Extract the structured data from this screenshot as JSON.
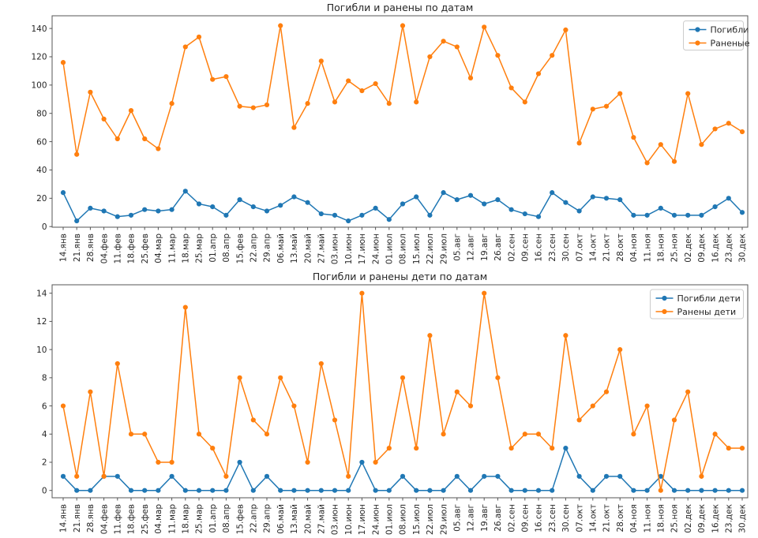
{
  "figure": {
    "background": "#ffffff",
    "spine_color": "#555555",
    "text_color": "#262626"
  },
  "chart_data": [
    {
      "type": "line",
      "title": "Погибли и ранены по датам",
      "ylabel": "",
      "xlabel": "",
      "ylim": [
        0,
        149
      ],
      "y_ticks": [
        0,
        20,
        40,
        60,
        80,
        100,
        120,
        140
      ],
      "grid": false,
      "legend_position": "upper right",
      "categories": [
        "14.янв",
        "21.янв",
        "28.янв",
        "04.фев",
        "11.фев",
        "18.фев",
        "25.фев",
        "04.мар",
        "11.мар",
        "18.мар",
        "25.мар",
        "01.апр",
        "08.апр",
        "15.фев",
        "22.апр",
        "29.апр",
        "06.май",
        "13.май",
        "20.май",
        "27.май",
        "03.июн",
        "10.июн",
        "17.июн",
        "24.июн",
        "01.июл",
        "08.июл",
        "15.июл",
        "22.июл",
        "29.июл",
        "05.авг",
        "12.авг",
        "19.авг",
        "26.авг",
        "02.сен",
        "09.сен",
        "16.сен",
        "23.сен",
        "30.сен",
        "07.окт",
        "14.окт",
        "21.окт",
        "28.окт",
        "04.ноя",
        "11.ноя",
        "18.ноя",
        "25.ноя",
        "02.дек",
        "09.дек",
        "16.дек",
        "23.дек",
        "30.дек"
      ],
      "series": [
        {
          "name": "Погибли",
          "color": "#1f77b4",
          "values": [
            24,
            4,
            13,
            11,
            7,
            8,
            12,
            11,
            12,
            25,
            16,
            14,
            8,
            19,
            14,
            11,
            15,
            21,
            17,
            9,
            8,
            4,
            8,
            13,
            5,
            16,
            21,
            8,
            24,
            19,
            22,
            16,
            19,
            12,
            9,
            7,
            24,
            17,
            11,
            21,
            20,
            19,
            8,
            8,
            13,
            8,
            8,
            8,
            14,
            20,
            10
          ]
        },
        {
          "name": "Раненые",
          "color": "#ff7f0e",
          "values": [
            116,
            51,
            95,
            76,
            62,
            82,
            62,
            55,
            87,
            127,
            134,
            104,
            106,
            85,
            84,
            86,
            142,
            70,
            87,
            117,
            88,
            103,
            96,
            101,
            87,
            142,
            88,
            120,
            131,
            127,
            105,
            141,
            121,
            98,
            88,
            108,
            121,
            139,
            59,
            83,
            85,
            94,
            63,
            45,
            58,
            46,
            94,
            58,
            69,
            73,
            67
          ]
        }
      ]
    },
    {
      "type": "line",
      "title": "Погибли и ранены дети по датам",
      "ylabel": "",
      "xlabel": "",
      "ylim": [
        0,
        14.9
      ],
      "y_ticks": [
        0,
        2,
        4,
        6,
        8,
        10,
        12,
        14
      ],
      "grid": false,
      "legend_position": "upper right",
      "categories": [
        "14.янв",
        "21.янв",
        "28.янв",
        "04.фев",
        "11.фев",
        "18.фев",
        "25.фев",
        "04.мар",
        "11.мар",
        "18.мар",
        "25.мар",
        "01.апр",
        "08.апр",
        "15.фев",
        "22.апр",
        "29.апр",
        "06.май",
        "13.май",
        "20.май",
        "27.май",
        "03.июн",
        "10.июн",
        "17.июн",
        "24.июн",
        "01.июл",
        "08.июл",
        "15.июл",
        "22.июл",
        "29.июл",
        "05.авг",
        "12.авг",
        "19.авг",
        "26.авг",
        "02.сен",
        "09.сен",
        "16.сен",
        "23.сен",
        "30.сен",
        "07.окт",
        "14.окт",
        "21.окт",
        "28.окт",
        "04.ноя",
        "11.ноя",
        "18.ноя",
        "25.ноя",
        "02.дек",
        "09.дек",
        "16.дек",
        "23.дек",
        "30.дек"
      ],
      "series": [
        {
          "name": "Погибли дети",
          "color": "#1f77b4",
          "values": [
            1,
            0,
            0,
            1,
            1,
            0,
            0,
            0,
            1,
            0,
            0,
            0,
            0,
            2,
            0,
            1,
            0,
            0,
            0,
            0,
            0,
            0,
            2,
            0,
            0,
            1,
            0,
            0,
            0,
            1,
            0,
            1,
            1,
            0,
            0,
            0,
            0,
            3,
            1,
            0,
            1,
            1,
            0,
            0,
            1,
            0,
            0,
            0,
            0,
            0,
            0
          ]
        },
        {
          "name": "Ранены дети",
          "color": "#ff7f0e",
          "values": [
            6,
            1,
            7,
            1,
            9,
            4,
            4,
            2,
            2,
            13,
            4,
            3,
            1,
            8,
            5,
            4,
            8,
            6,
            2,
            9,
            5,
            1,
            14,
            2,
            3,
            8,
            3,
            11,
            4,
            7,
            6,
            14,
            8,
            3,
            4,
            4,
            3,
            11,
            5,
            6,
            7,
            10,
            4,
            6,
            0,
            5,
            7,
            1,
            4,
            3,
            3
          ]
        }
      ]
    }
  ]
}
